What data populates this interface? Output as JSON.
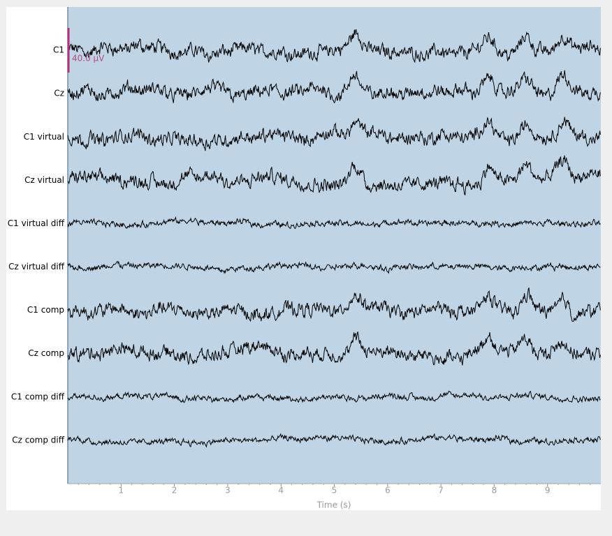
{
  "channels": [
    "C1",
    "Cz",
    "C1 virtual",
    "Cz virtual",
    "C1 virtual diff",
    "Cz virtual diff",
    "C1 comp",
    "Cz comp",
    "C1 comp diff",
    "Cz comp diff"
  ],
  "scale_label": "40.0 µV",
  "x_axis": {
    "label": "Time (s)",
    "xlim": [
      0,
      10
    ],
    "xticks": [
      1,
      2,
      3,
      4,
      5,
      6,
      7,
      8,
      9
    ]
  }
}
